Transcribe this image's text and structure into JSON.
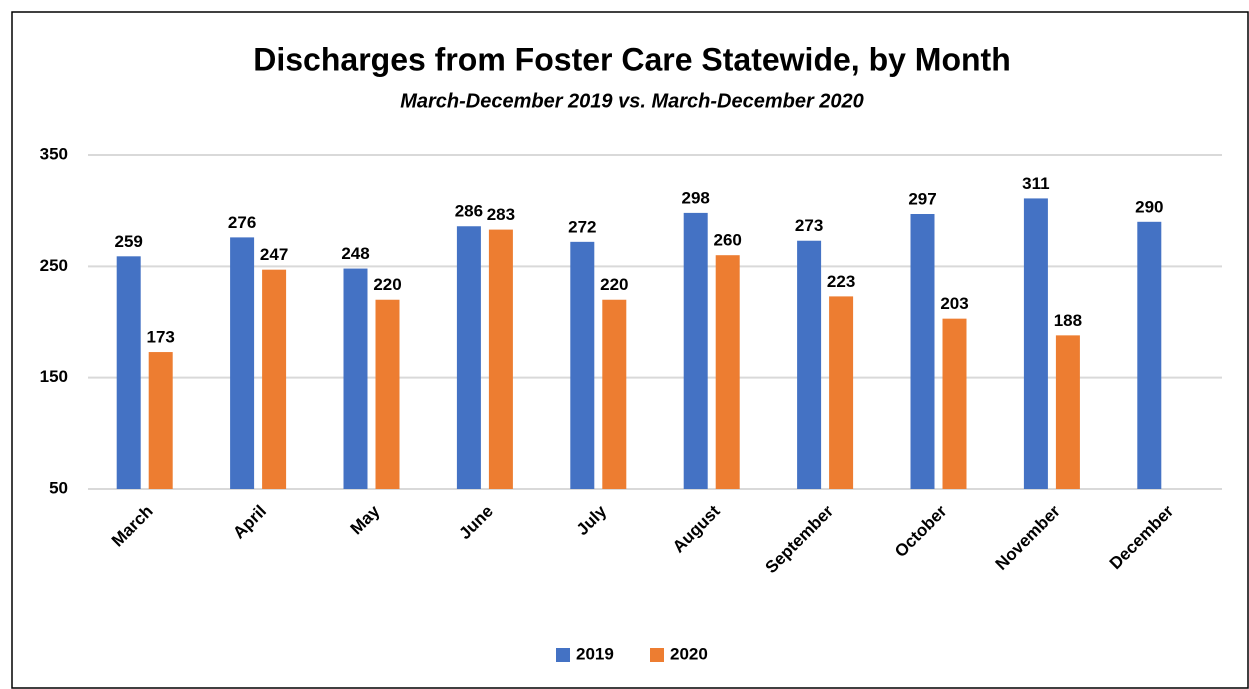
{
  "chart_data": {
    "type": "bar",
    "title": "Discharges from Foster Care Statewide, by Month",
    "subtitle": "March-December 2019 vs. March-December 2020",
    "categories": [
      "March",
      "April",
      "May",
      "June",
      "July",
      "August",
      "September",
      "October",
      "November",
      "December"
    ],
    "series": [
      {
        "name": "2019",
        "color": "#4472c4",
        "values": [
          259,
          276,
          248,
          286,
          272,
          298,
          273,
          297,
          311,
          290
        ]
      },
      {
        "name": "2020",
        "color": "#ed7d31",
        "values": [
          173,
          247,
          220,
          283,
          220,
          260,
          223,
          203,
          188,
          null
        ]
      }
    ],
    "ylim": [
      50,
      350
    ],
    "yticks": [
      50,
      150,
      250,
      350
    ],
    "grid": true,
    "legend": "bottom"
  }
}
